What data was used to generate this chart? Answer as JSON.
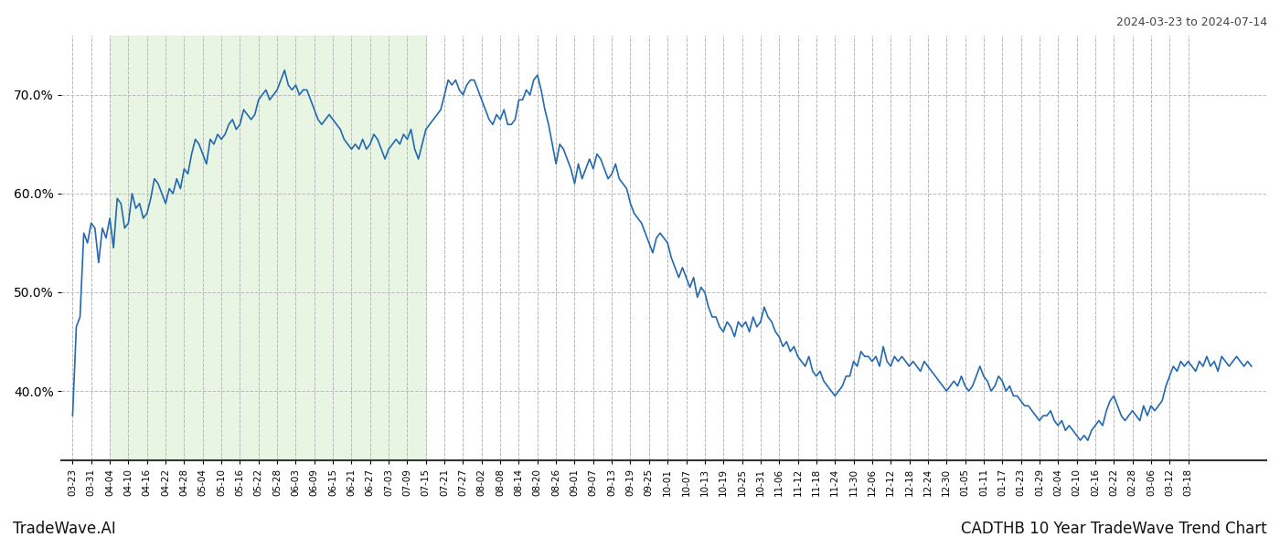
{
  "title_right": "2024-03-23 to 2024-07-14",
  "bottom_left": "TradeWave.AI",
  "bottom_right": "CADTHB 10 Year TradeWave Trend Chart",
  "line_color": "#2369b0",
  "shaded_region_color": "#d6edcc",
  "shaded_region_alpha": 0.55,
  "background_color": "#ffffff",
  "grid_color": "#bbbbbb",
  "grid_style": "--",
  "y_ticks": [
    40.0,
    50.0,
    60.0,
    70.0
  ],
  "y_min": 33,
  "y_max": 76,
  "shade_start_label": "04-04",
  "shade_end_label": "07-15",
  "x_labels": [
    "03-23",
    "03-31",
    "04-04",
    "04-10",
    "04-16",
    "04-22",
    "04-28",
    "05-04",
    "05-10",
    "05-16",
    "05-22",
    "05-28",
    "06-03",
    "06-09",
    "06-15",
    "06-21",
    "06-27",
    "07-03",
    "07-09",
    "07-15",
    "07-21",
    "07-27",
    "08-02",
    "08-08",
    "08-14",
    "08-20",
    "08-26",
    "09-01",
    "09-07",
    "09-13",
    "09-19",
    "09-25",
    "10-01",
    "10-07",
    "10-13",
    "10-19",
    "10-25",
    "10-31",
    "11-06",
    "11-12",
    "11-18",
    "11-24",
    "11-30",
    "12-06",
    "12-12",
    "12-18",
    "12-24",
    "12-30",
    "01-05",
    "01-11",
    "01-17",
    "01-23",
    "01-29",
    "02-04",
    "02-10",
    "02-16",
    "02-22",
    "02-28",
    "03-06",
    "03-12",
    "03-18"
  ],
  "values": [
    37.5,
    46.5,
    47.5,
    56.0,
    55.0,
    57.0,
    56.5,
    53.0,
    56.5,
    55.5,
    57.5,
    54.5,
    59.5,
    59.0,
    56.5,
    57.0,
    60.0,
    58.5,
    59.0,
    57.5,
    58.0,
    59.5,
    61.5,
    61.0,
    60.0,
    59.0,
    60.5,
    60.0,
    61.5,
    60.5,
    62.5,
    62.0,
    64.0,
    65.5,
    65.0,
    64.0,
    63.0,
    65.5,
    65.0,
    66.0,
    65.5,
    66.0,
    67.0,
    67.5,
    66.5,
    67.0,
    68.5,
    68.0,
    67.5,
    68.0,
    69.5,
    70.0,
    70.5,
    69.5,
    70.0,
    70.5,
    71.5,
    72.5,
    71.0,
    70.5,
    71.0,
    70.0,
    70.5,
    70.5,
    69.5,
    68.5,
    67.5,
    67.0,
    67.5,
    68.0,
    67.5,
    67.0,
    66.5,
    65.5,
    65.0,
    64.5,
    65.0,
    64.5,
    65.5,
    64.5,
    65.0,
    66.0,
    65.5,
    64.5,
    63.5,
    64.5,
    65.0,
    65.5,
    65.0,
    66.0,
    65.5,
    66.5,
    64.5,
    63.5,
    65.0,
    66.5,
    67.0,
    67.5,
    68.0,
    68.5,
    70.0,
    71.5,
    71.0,
    71.5,
    70.5,
    70.0,
    71.0,
    71.5,
    71.5,
    70.5,
    69.5,
    68.5,
    67.5,
    67.0,
    68.0,
    67.5,
    68.5,
    67.0,
    67.0,
    67.5,
    69.5,
    69.5,
    70.5,
    70.0,
    71.5,
    72.0,
    70.5,
    68.5,
    67.0,
    65.0,
    63.0,
    65.0,
    64.5,
    63.5,
    62.5,
    61.0,
    63.0,
    61.5,
    62.5,
    63.5,
    62.5,
    64.0,
    63.5,
    62.5,
    61.5,
    62.0,
    63.0,
    61.5,
    61.0,
    60.5,
    59.0,
    58.0,
    57.5,
    57.0,
    56.0,
    55.0,
    54.0,
    55.5,
    56.0,
    55.5,
    55.0,
    53.5,
    52.5,
    51.5,
    52.5,
    51.5,
    50.5,
    51.5,
    49.5,
    50.5,
    50.0,
    48.5,
    47.5,
    47.5,
    46.5,
    46.0,
    47.0,
    46.5,
    45.5,
    47.0,
    46.5,
    47.0,
    46.0,
    47.5,
    46.5,
    47.0,
    48.5,
    47.5,
    47.0,
    46.0,
    45.5,
    44.5,
    45.0,
    44.0,
    44.5,
    43.5,
    43.0,
    42.5,
    43.5,
    42.0,
    41.5,
    42.0,
    41.0,
    40.5,
    40.0,
    39.5,
    40.0,
    40.5,
    41.5,
    41.5,
    43.0,
    42.5,
    44.0,
    43.5,
    43.5,
    43.0,
    43.5,
    42.5,
    44.5,
    43.0,
    42.5,
    43.5,
    43.0,
    43.5,
    43.0,
    42.5,
    43.0,
    42.5,
    42.0,
    43.0,
    42.5,
    42.0,
    41.5,
    41.0,
    40.5,
    40.0,
    40.5,
    41.0,
    40.5,
    41.5,
    40.5,
    40.0,
    40.5,
    41.5,
    42.5,
    41.5,
    41.0,
    40.0,
    40.5,
    41.5,
    41.0,
    40.0,
    40.5,
    39.5,
    39.5,
    39.0,
    38.5,
    38.5,
    38.0,
    37.5,
    37.0,
    37.5,
    37.5,
    38.0,
    37.0,
    36.5,
    37.0,
    36.0,
    36.5,
    36.0,
    35.5,
    35.0,
    35.5,
    35.0,
    36.0,
    36.5,
    37.0,
    36.5,
    38.0,
    39.0,
    39.5,
    38.5,
    37.5,
    37.0,
    37.5,
    38.0,
    37.5,
    37.0,
    38.5,
    37.5,
    38.5,
    38.0,
    38.5,
    39.0,
    40.5,
    41.5,
    42.5,
    42.0,
    43.0,
    42.5,
    43.0,
    42.5,
    42.0,
    43.0,
    42.5,
    43.5,
    42.5,
    43.0,
    42.0,
    43.5,
    43.0,
    42.5,
    43.0,
    43.5,
    43.0,
    42.5,
    43.0,
    42.5
  ],
  "n_per_label": 5
}
